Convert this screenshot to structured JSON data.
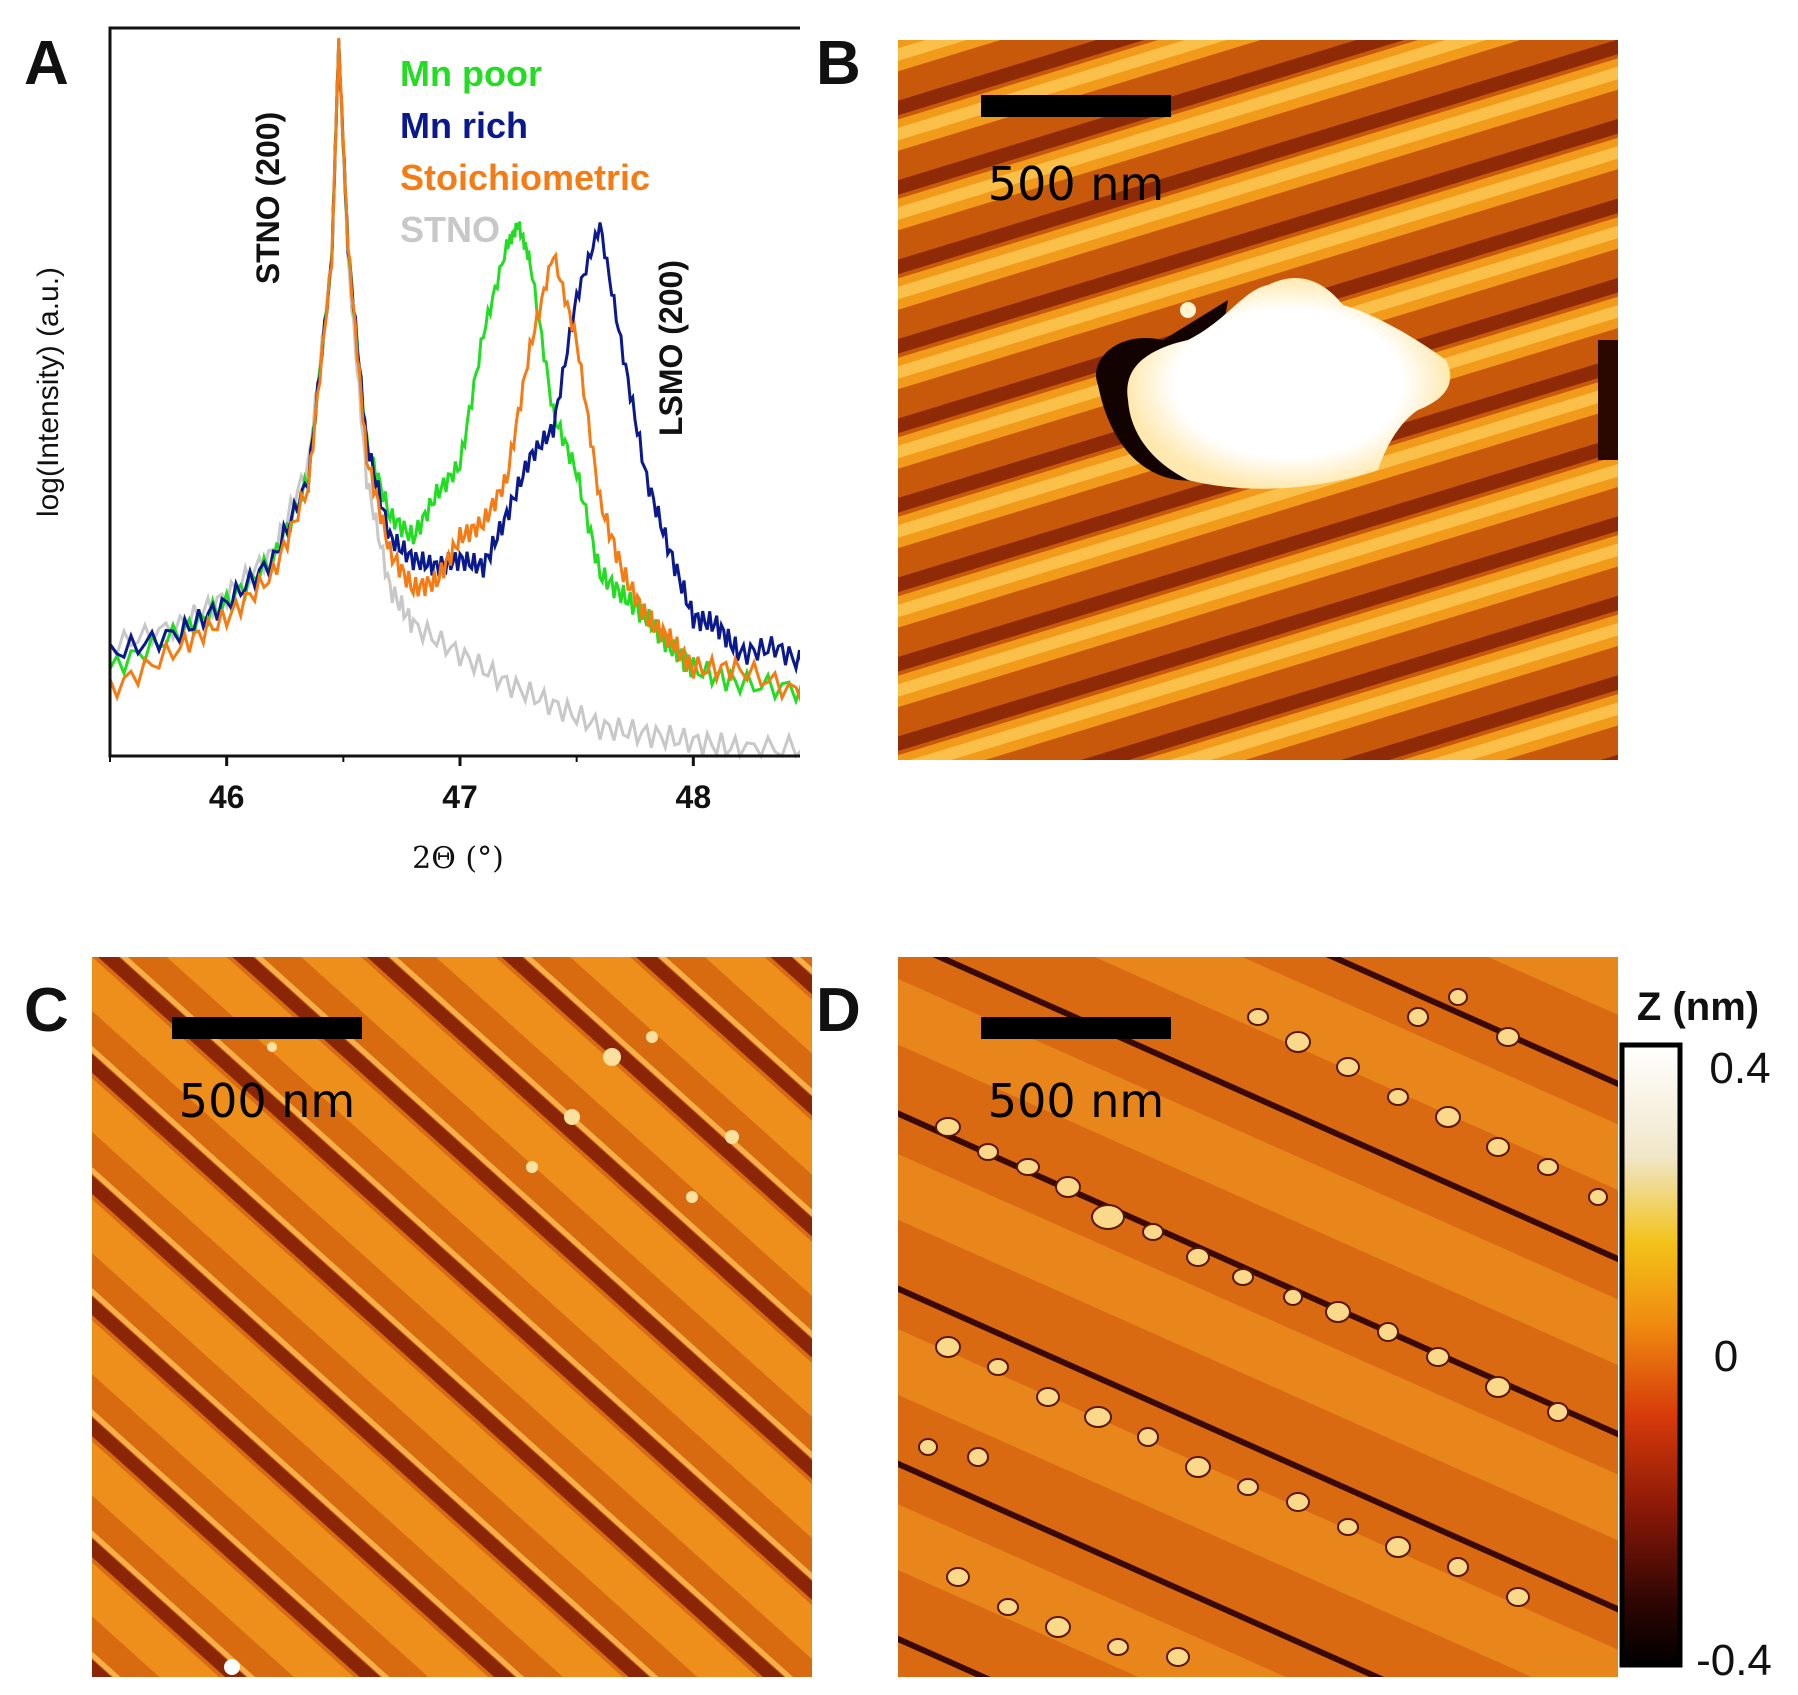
{
  "panels": {
    "a": "A",
    "b": "B",
    "c": "C",
    "d": "D"
  },
  "chart_data": {
    "type": "line",
    "xlabel": "2Θ (°)",
    "ylabel": "log(Intensity) (a.u.)",
    "xlim": [
      45.5,
      48.5
    ],
    "ylim": [
      0,
      1
    ],
    "xticks": [
      46,
      47,
      48
    ],
    "peak_labels": [
      "STNO (200)",
      "LSMO (200)"
    ],
    "series": [
      {
        "name": "Mn poor",
        "color": "#22dd22",
        "points": [
          [
            45.5,
            0.12
          ],
          [
            45.8,
            0.17
          ],
          [
            46.0,
            0.21
          ],
          [
            46.2,
            0.27
          ],
          [
            46.35,
            0.38
          ],
          [
            46.45,
            0.68
          ],
          [
            46.48,
            0.98
          ],
          [
            46.52,
            0.7
          ],
          [
            46.6,
            0.43
          ],
          [
            46.7,
            0.33
          ],
          [
            46.8,
            0.3
          ],
          [
            46.9,
            0.36
          ],
          [
            47.0,
            0.4
          ],
          [
            47.1,
            0.58
          ],
          [
            47.2,
            0.7
          ],
          [
            47.25,
            0.73
          ],
          [
            47.3,
            0.68
          ],
          [
            47.4,
            0.47
          ],
          [
            47.5,
            0.39
          ],
          [
            47.6,
            0.25
          ],
          [
            47.7,
            0.22
          ],
          [
            47.8,
            0.19
          ],
          [
            47.9,
            0.15
          ],
          [
            48.0,
            0.12
          ],
          [
            48.2,
            0.1
          ],
          [
            48.5,
            0.09
          ]
        ]
      },
      {
        "name": "Mn rich",
        "color": "#0a1a8c",
        "points": [
          [
            45.5,
            0.14
          ],
          [
            45.8,
            0.17
          ],
          [
            46.0,
            0.21
          ],
          [
            46.2,
            0.27
          ],
          [
            46.35,
            0.38
          ],
          [
            46.45,
            0.68
          ],
          [
            46.48,
            0.98
          ],
          [
            46.52,
            0.7
          ],
          [
            46.6,
            0.43
          ],
          [
            46.7,
            0.3
          ],
          [
            46.8,
            0.27
          ],
          [
            46.9,
            0.26
          ],
          [
            47.0,
            0.27
          ],
          [
            47.1,
            0.26
          ],
          [
            47.2,
            0.33
          ],
          [
            47.3,
            0.41
          ],
          [
            47.4,
            0.45
          ],
          [
            47.5,
            0.63
          ],
          [
            47.6,
            0.73
          ],
          [
            47.7,
            0.55
          ],
          [
            47.8,
            0.38
          ],
          [
            47.9,
            0.28
          ],
          [
            48.0,
            0.19
          ],
          [
            48.1,
            0.18
          ],
          [
            48.2,
            0.14
          ],
          [
            48.35,
            0.15
          ],
          [
            48.5,
            0.12
          ]
        ]
      },
      {
        "name": "Stoichiometric",
        "color": "#f57c14",
        "points": [
          [
            45.5,
            0.09
          ],
          [
            45.8,
            0.15
          ],
          [
            46.0,
            0.19
          ],
          [
            46.2,
            0.25
          ],
          [
            46.35,
            0.37
          ],
          [
            46.45,
            0.68
          ],
          [
            46.48,
            0.98
          ],
          [
            46.52,
            0.7
          ],
          [
            46.6,
            0.41
          ],
          [
            46.7,
            0.28
          ],
          [
            46.8,
            0.23
          ],
          [
            46.9,
            0.24
          ],
          [
            47.0,
            0.3
          ],
          [
            47.1,
            0.32
          ],
          [
            47.2,
            0.38
          ],
          [
            47.3,
            0.56
          ],
          [
            47.4,
            0.69
          ],
          [
            47.5,
            0.57
          ],
          [
            47.6,
            0.35
          ],
          [
            47.7,
            0.25
          ],
          [
            47.8,
            0.19
          ],
          [
            47.9,
            0.16
          ],
          [
            48.0,
            0.12
          ],
          [
            48.2,
            0.12
          ],
          [
            48.5,
            0.08
          ]
        ]
      },
      {
        "name": "STNO",
        "color": "#c8c8c8",
        "points": [
          [
            45.5,
            0.15
          ],
          [
            45.8,
            0.18
          ],
          [
            46.0,
            0.22
          ],
          [
            46.2,
            0.28
          ],
          [
            46.35,
            0.4
          ],
          [
            46.45,
            0.68
          ],
          [
            46.48,
            0.98
          ],
          [
            46.52,
            0.68
          ],
          [
            46.6,
            0.38
          ],
          [
            46.7,
            0.23
          ],
          [
            46.8,
            0.18
          ],
          [
            47.0,
            0.14
          ],
          [
            47.2,
            0.1
          ],
          [
            47.4,
            0.07
          ],
          [
            47.6,
            0.04
          ],
          [
            47.8,
            0.03
          ],
          [
            48.0,
            0.02
          ],
          [
            48.2,
            0.01
          ],
          [
            48.5,
            0.01
          ]
        ]
      }
    ]
  },
  "scale_bars": {
    "b": "500 nm",
    "c": "500 nm",
    "d": "500 nm"
  },
  "colorbar": {
    "title": "Z (nm)",
    "max_label": "0.4",
    "mid_label": "0",
    "min_label": "-0.4"
  }
}
